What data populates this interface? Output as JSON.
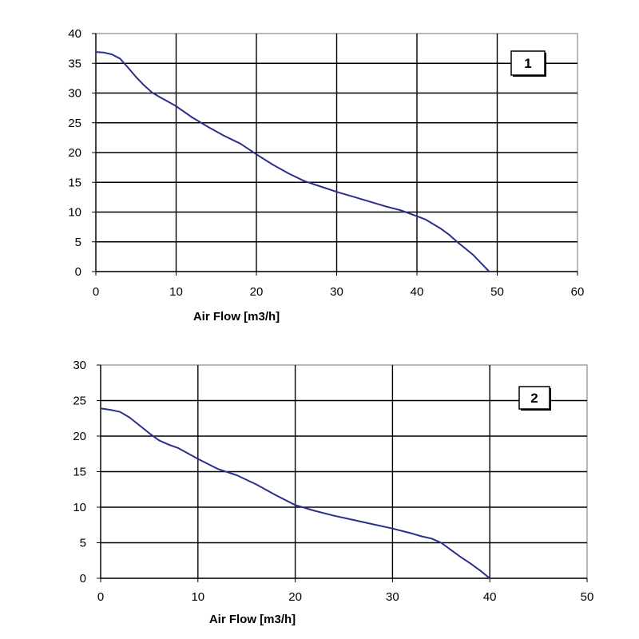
{
  "colors": {
    "curve": "#2b2f8c",
    "grid": "#000000",
    "frame": "#8a8a8a"
  },
  "chart_data": [
    {
      "type": "line",
      "title": "",
      "xlabel": "Air Flow [m3/h]",
      "ylabel": "",
      "xlim": [
        0,
        60
      ],
      "ylim": [
        0,
        40
      ],
      "xticks": [
        0,
        10,
        20,
        30,
        40,
        50,
        60
      ],
      "yticks": [
        0,
        5,
        10,
        15,
        20,
        25,
        30,
        35,
        40
      ],
      "grid": true,
      "annotation": "1",
      "series": [
        {
          "x": [
            0,
            1,
            2,
            3,
            4,
            5,
            6,
            7,
            8,
            10,
            12,
            14,
            16,
            18,
            20,
            22,
            24,
            26,
            28,
            30,
            32,
            34,
            36,
            38,
            40,
            41,
            42,
            43,
            44,
            45,
            46,
            47,
            48,
            49
          ],
          "y": [
            36.9,
            36.8,
            36.5,
            35.8,
            34.3,
            32.7,
            31.3,
            30.1,
            29.3,
            27.8,
            25.9,
            24.3,
            22.8,
            21.5,
            19.7,
            18.0,
            16.5,
            15.2,
            14.3,
            13.4,
            12.6,
            11.8,
            11.0,
            10.3,
            9.3,
            8.8,
            8.0,
            7.2,
            6.2,
            5.0,
            3.9,
            2.8,
            1.4,
            0.0
          ]
        }
      ]
    },
    {
      "type": "line",
      "title": "",
      "xlabel": "Air Flow [m3/h]",
      "ylabel": "",
      "xlim": [
        0,
        50
      ],
      "ylim": [
        0,
        30
      ],
      "xticks": [
        0,
        10,
        20,
        30,
        40,
        50
      ],
      "yticks": [
        0,
        5,
        10,
        15,
        20,
        25,
        30
      ],
      "grid": true,
      "annotation": "2",
      "series": [
        {
          "x": [
            0,
            1,
            2,
            3,
            4,
            5,
            6,
            7,
            8,
            10,
            12,
            14,
            16,
            18,
            20,
            22,
            24,
            26,
            28,
            30,
            32,
            33,
            34,
            35,
            36,
            37,
            38,
            39,
            40
          ],
          "y": [
            23.9,
            23.7,
            23.4,
            22.6,
            21.5,
            20.4,
            19.4,
            18.8,
            18.3,
            16.8,
            15.4,
            14.5,
            13.2,
            11.7,
            10.3,
            9.5,
            8.8,
            8.2,
            7.6,
            7.0,
            6.3,
            5.9,
            5.6,
            5.0,
            4.0,
            3.0,
            2.1,
            1.1,
            0.0
          ]
        }
      ]
    }
  ]
}
